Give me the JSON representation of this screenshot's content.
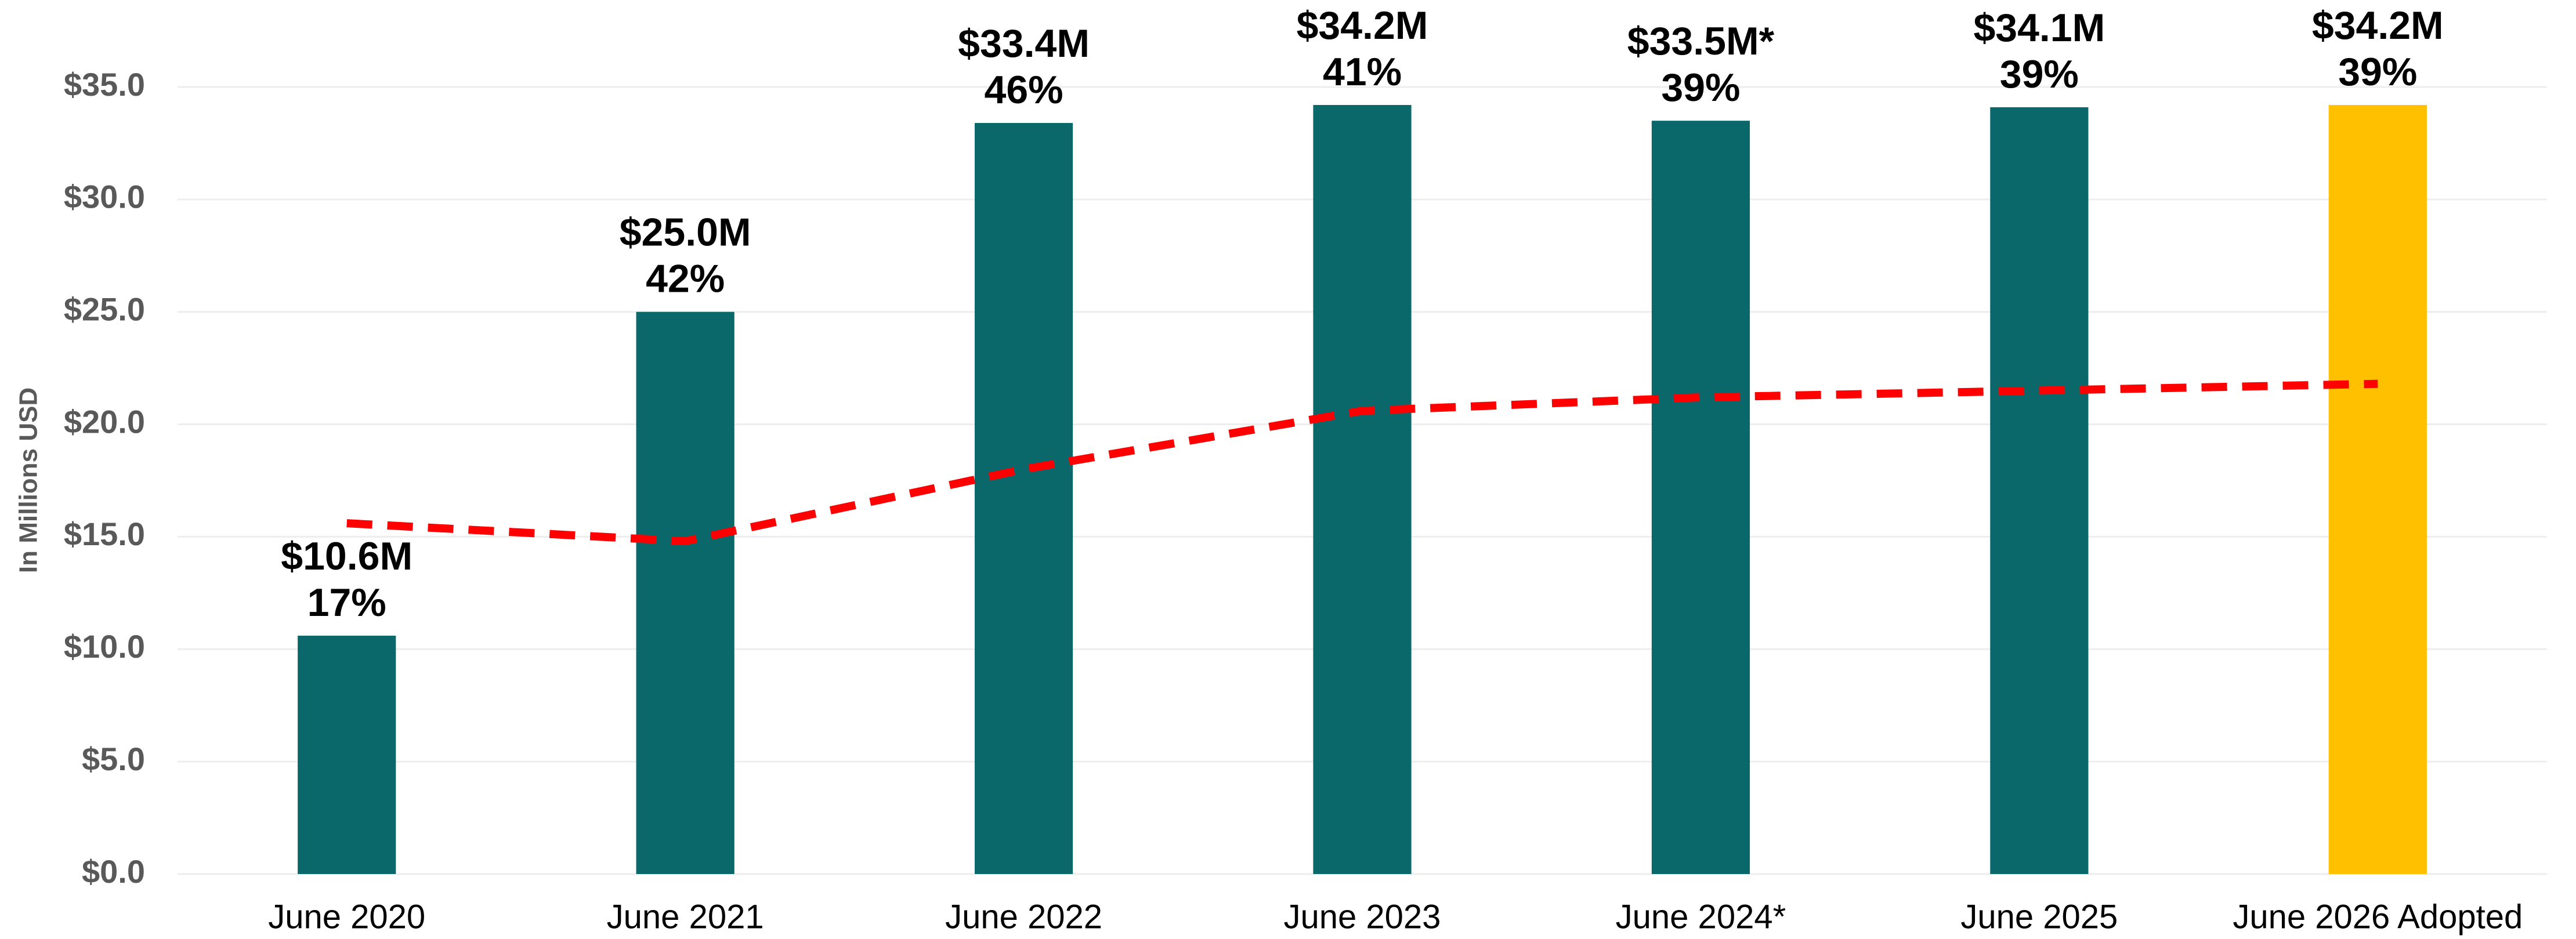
{
  "chart_data": {
    "type": "bar",
    "y_axis_label": "In Millions USD",
    "categories": [
      "June 2020",
      "June 2021",
      "June 2022",
      "June 2023",
      "June 2024*",
      "June 2025",
      "June 2026 Adopted"
    ],
    "series": [
      {
        "type": "bar",
        "colors": [
          "#0a686b",
          "#0a686b",
          "#0a686b",
          "#0a686b",
          "#0a686b",
          "#0a686b",
          "#ffc000"
        ],
        "values": [
          10.6,
          25.0,
          33.4,
          34.2,
          33.5,
          34.1,
          34.2
        ],
        "value_labels": [
          "$10.6M",
          "$25.0M",
          "$33.4M",
          "$34.2M",
          "$33.5M*",
          "$34.1M",
          "$34.2M"
        ],
        "share_labels": [
          "17%",
          "42%",
          "46%",
          "41%",
          "39%",
          "39%",
          "39%"
        ]
      },
      {
        "type": "line",
        "color": "#ff0000",
        "dashed": true,
        "values": [
          15.6,
          14.8,
          18.0,
          20.6,
          21.2,
          21.5,
          21.8
        ]
      }
    ],
    "ylim": [
      0,
      35
    ],
    "yticks": [
      {
        "value": 0,
        "label": "$0.0"
      },
      {
        "value": 5,
        "label": "$5.0"
      },
      {
        "value": 10,
        "label": "$10.0"
      },
      {
        "value": 15,
        "label": "$15.0"
      },
      {
        "value": 20,
        "label": "$20.0"
      },
      {
        "value": 25,
        "label": "$25.0"
      },
      {
        "value": 30,
        "label": "$30.0"
      },
      {
        "value": 35,
        "label": "$35.0"
      }
    ],
    "grid": true
  }
}
